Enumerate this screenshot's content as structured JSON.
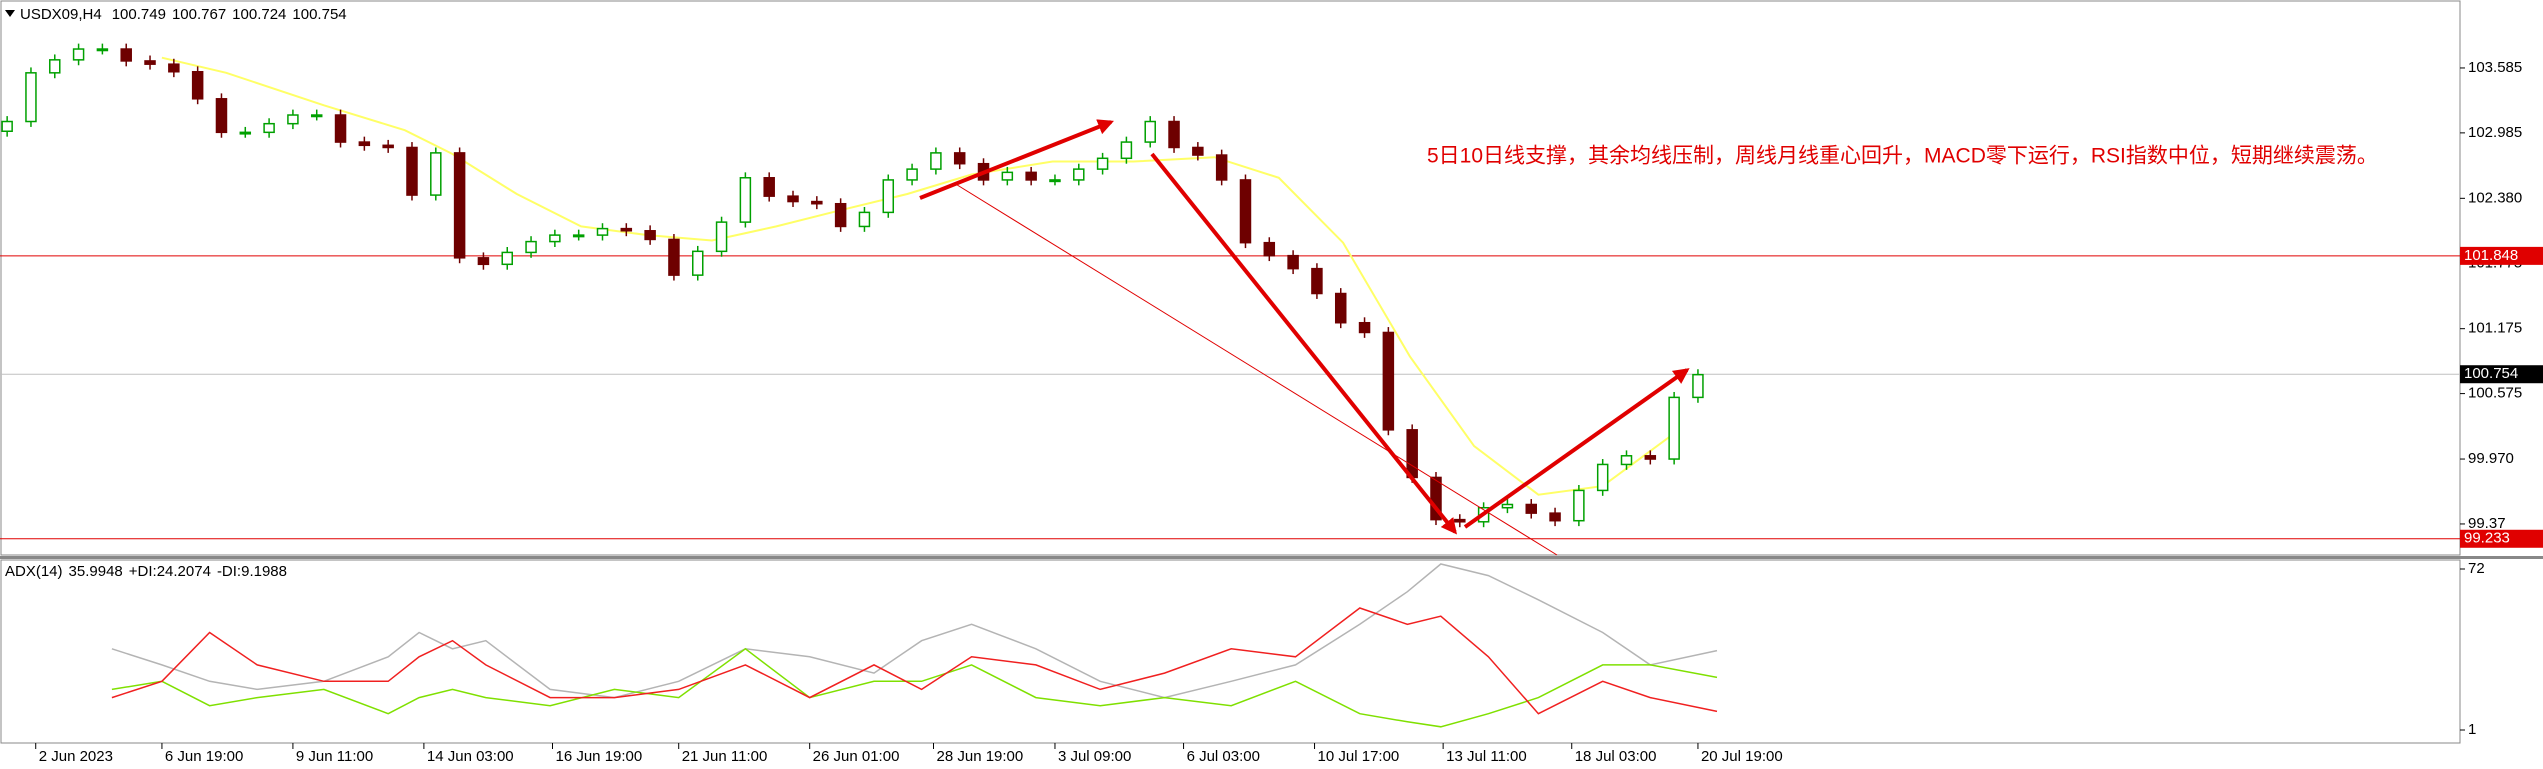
{
  "chart_data": [
    {
      "type": "candlestick",
      "title": "USDX09,H4",
      "header_values": [
        100.749,
        100.767,
        100.724,
        100.754
      ],
      "annotation": "5日10日线支撑，其余均线压制，周线月线重心回升，MACD零下运行，RSI指数中位，短期继续震荡。",
      "up_color": "#00a000",
      "down_color": "#6e0000",
      "open": [
        103.0,
        103.09,
        103.54,
        103.66,
        103.76,
        103.76,
        103.65,
        103.62,
        103.55,
        103.3,
        102.99,
        102.99,
        103.07,
        103.15,
        103.15,
        102.9,
        102.87,
        102.85,
        102.41,
        102.8,
        101.83,
        101.77,
        101.88,
        101.98,
        102.04,
        102.04,
        102.1,
        102.08,
        102.0,
        101.67,
        101.89,
        102.16,
        102.57,
        102.4,
        102.35,
        102.33,
        102.12,
        102.25,
        102.55,
        102.65,
        102.8,
        102.7,
        102.55,
        102.62,
        102.55,
        102.55,
        102.65,
        102.75,
        102.9,
        103.09,
        102.85,
        102.78,
        102.55,
        101.97,
        101.85,
        101.73,
        101.5,
        101.23,
        101.14,
        100.24,
        99.8,
        99.41,
        99.39,
        99.52,
        99.55,
        99.47,
        99.4,
        99.68,
        99.92,
        100.0,
        99.97,
        100.54
      ],
      "high": [
        103.14,
        103.59,
        103.71,
        103.81,
        103.81,
        103.81,
        103.7,
        103.67,
        103.6,
        103.35,
        103.04,
        103.12,
        103.2,
        103.2,
        103.2,
        102.95,
        102.92,
        102.9,
        102.85,
        102.85,
        101.88,
        101.93,
        102.03,
        102.09,
        102.09,
        102.15,
        102.15,
        102.13,
        102.05,
        101.94,
        102.21,
        102.62,
        102.62,
        102.45,
        102.4,
        102.38,
        102.3,
        102.6,
        102.7,
        102.85,
        102.85,
        102.75,
        102.67,
        102.67,
        102.6,
        102.7,
        102.8,
        102.95,
        103.14,
        103.14,
        102.9,
        102.83,
        102.6,
        102.02,
        101.9,
        101.78,
        101.55,
        101.28,
        101.19,
        100.29,
        99.85,
        99.46,
        99.57,
        99.6,
        99.6,
        99.52,
        99.73,
        99.97,
        100.05,
        100.05,
        100.59,
        100.8
      ],
      "low": [
        102.95,
        103.04,
        103.49,
        103.61,
        103.71,
        103.6,
        103.57,
        103.5,
        103.25,
        102.94,
        102.94,
        102.94,
        103.02,
        103.1,
        102.85,
        102.82,
        102.8,
        102.36,
        102.36,
        101.78,
        101.72,
        101.72,
        101.83,
        101.93,
        101.99,
        101.99,
        102.03,
        101.95,
        101.62,
        101.62,
        101.84,
        102.11,
        102.35,
        102.3,
        102.28,
        102.07,
        102.07,
        102.2,
        102.5,
        102.6,
        102.65,
        102.5,
        102.5,
        102.5,
        102.5,
        102.5,
        102.6,
        102.7,
        102.85,
        102.8,
        102.73,
        102.5,
        101.92,
        101.8,
        101.68,
        101.45,
        101.18,
        101.09,
        100.19,
        99.75,
        99.36,
        99.34,
        99.34,
        99.47,
        99.42,
        99.35,
        99.35,
        99.63,
        99.87,
        99.92,
        99.92,
        100.49
      ],
      "close": [
        103.09,
        103.54,
        103.66,
        103.76,
        103.76,
        103.65,
        103.62,
        103.55,
        103.3,
        102.99,
        102.99,
        103.07,
        103.15,
        103.15,
        102.9,
        102.87,
        102.85,
        102.41,
        102.8,
        101.83,
        101.77,
        101.88,
        101.98,
        102.04,
        102.04,
        102.1,
        102.08,
        102.0,
        101.67,
        101.89,
        102.16,
        102.57,
        102.4,
        102.35,
        102.33,
        102.12,
        102.25,
        102.55,
        102.65,
        102.8,
        102.7,
        102.55,
        102.62,
        102.55,
        102.55,
        102.65,
        102.75,
        102.9,
        103.09,
        102.85,
        102.78,
        102.55,
        101.97,
        101.85,
        101.73,
        101.5,
        101.23,
        101.14,
        100.24,
        99.8,
        99.41,
        99.39,
        99.52,
        99.55,
        99.47,
        99.4,
        99.68,
        99.92,
        100.0,
        99.97,
        100.54,
        100.75
      ],
      "ma": {
        "color": "#ffff66",
        "x": [
          6.5,
          9.2,
          13.3,
          16.7,
          18.7,
          21.4,
          24.1,
          26.9,
          29.6,
          32.3,
          35.0,
          37.8,
          40.5,
          43.9,
          47.3,
          50.7,
          53.4,
          56.1,
          58.9,
          61.6,
          64.3,
          67.0,
          69.9
        ],
        "values": [
          103.68,
          103.54,
          103.24,
          103.01,
          102.79,
          102.42,
          102.12,
          102.04,
          101.99,
          102.12,
          102.27,
          102.42,
          102.6,
          102.72,
          102.72,
          102.76,
          102.57,
          101.97,
          100.92,
          100.09,
          99.64,
          99.72,
          100.19
        ]
      },
      "hlines": [
        {
          "value": 101.848,
          "color": "#e00000"
        },
        {
          "value": 100.754,
          "color": "#000000"
        },
        {
          "value": 99.233,
          "color": "#e00000"
        }
      ],
      "xlim": [
        -0.3,
        103.0
      ],
      "xticks": [
        {
          "value": 1.2,
          "label": "2 Jun 2023"
        },
        {
          "value": 6.5,
          "label": "6 Jun 19:00"
        },
        {
          "value": 12.0,
          "label": "9 Jun 11:00"
        },
        {
          "value": 17.5,
          "label": "14 Jun 03:00"
        },
        {
          "value": 22.9,
          "label": "16 Jun 19:00"
        },
        {
          "value": 28.2,
          "label": "21 Jun 11:00"
        },
        {
          "value": 33.7,
          "label": "26 Jun 01:00"
        },
        {
          "value": 38.9,
          "label": "28 Jun 19:00"
        },
        {
          "value": 44.0,
          "label": "3 Jul 09:00"
        },
        {
          "value": 49.4,
          "label": "6 Jul 03:00"
        },
        {
          "value": 54.9,
          "label": "10 Jul 17:00"
        },
        {
          "value": 60.3,
          "label": "13 Jul 11:00"
        },
        {
          "value": 65.7,
          "label": "18 Jul 03:00"
        },
        {
          "value": 71.0,
          "label": "20 Jul 19:00"
        }
      ],
      "ylim": [
        99.083,
        104.167
      ],
      "yticks": [
        103.585,
        102.985,
        {
          "value": 102.38,
          "label": "102.380"
        },
        101.775,
        101.175,
        100.575,
        {
          "value": 99.97,
          "label": "99.970"
        },
        99.37
      ]
    },
    {
      "type": "line",
      "title": "ADX(14)",
      "xlim": [
        -0.3,
        103.0
      ],
      "ylim": [
        -4.73,
        75.97
      ],
      "yticks": [
        72,
        1
      ],
      "series": [
        {
          "name": "ADX(14)",
          "last": 35.9948,
          "color": "#b4b4b4",
          "x": [
            4.4,
            6.5,
            8.5,
            10.5,
            13.3,
            16.0,
            17.3,
            18.7,
            20.1,
            22.8,
            25.5,
            28.2,
            31.0,
            33.7,
            36.4,
            38.4,
            40.5,
            43.2,
            45.9,
            48.6,
            51.4,
            54.1,
            56.8,
            58.8,
            60.2,
            62.2,
            64.3,
            67.0,
            69.0,
            71.8
          ],
          "values": [
            36.8,
            29.7,
            22.5,
            18.9,
            22.5,
            33.3,
            44.0,
            36.8,
            40.4,
            18.9,
            15.3,
            22.5,
            36.8,
            33.3,
            26.1,
            40.4,
            47.6,
            36.8,
            22.5,
            15.3,
            22.5,
            29.7,
            47.6,
            62.0,
            74.2,
            69.1,
            58.4,
            44.0,
            29.7,
            36.0
          ]
        },
        {
          "name": "+DI:",
          "last": 24.2074,
          "color": "#7fe000",
          "x": [
            4.4,
            6.5,
            8.5,
            10.5,
            13.3,
            16.0,
            17.3,
            18.7,
            20.1,
            22.8,
            25.5,
            28.2,
            31.0,
            33.7,
            36.4,
            38.4,
            40.5,
            43.2,
            45.9,
            48.6,
            51.4,
            54.1,
            56.8,
            58.8,
            60.2,
            62.2,
            64.3,
            67.0,
            69.0,
            71.8
          ],
          "values": [
            18.9,
            22.5,
            11.7,
            15.3,
            18.9,
            8.2,
            15.3,
            18.9,
            15.3,
            11.7,
            18.9,
            15.3,
            36.8,
            15.3,
            22.5,
            22.5,
            29.7,
            15.3,
            11.7,
            15.3,
            11.7,
            22.5,
            8.2,
            4.6,
            2.4,
            8.2,
            15.3,
            29.7,
            29.7,
            24.2
          ]
        },
        {
          "name": "-DI:",
          "last": 9.1988,
          "color": "#f02020",
          "x": [
            4.4,
            6.5,
            8.5,
            10.5,
            13.3,
            16.0,
            17.3,
            18.7,
            20.1,
            22.8,
            25.5,
            28.2,
            31.0,
            33.7,
            36.4,
            38.4,
            40.5,
            43.2,
            45.9,
            48.6,
            51.4,
            54.1,
            56.8,
            58.8,
            60.2,
            62.2,
            64.3,
            67.0,
            69.0,
            71.8
          ],
          "values": [
            15.3,
            22.5,
            44.0,
            29.7,
            22.5,
            22.5,
            33.3,
            40.4,
            29.7,
            15.3,
            15.3,
            18.9,
            29.7,
            15.3,
            29.7,
            18.9,
            33.3,
            29.7,
            18.9,
            26.1,
            36.8,
            33.3,
            54.8,
            47.6,
            51.2,
            33.3,
            8.2,
            22.5,
            15.3,
            9.2
          ]
        }
      ]
    }
  ]
}
